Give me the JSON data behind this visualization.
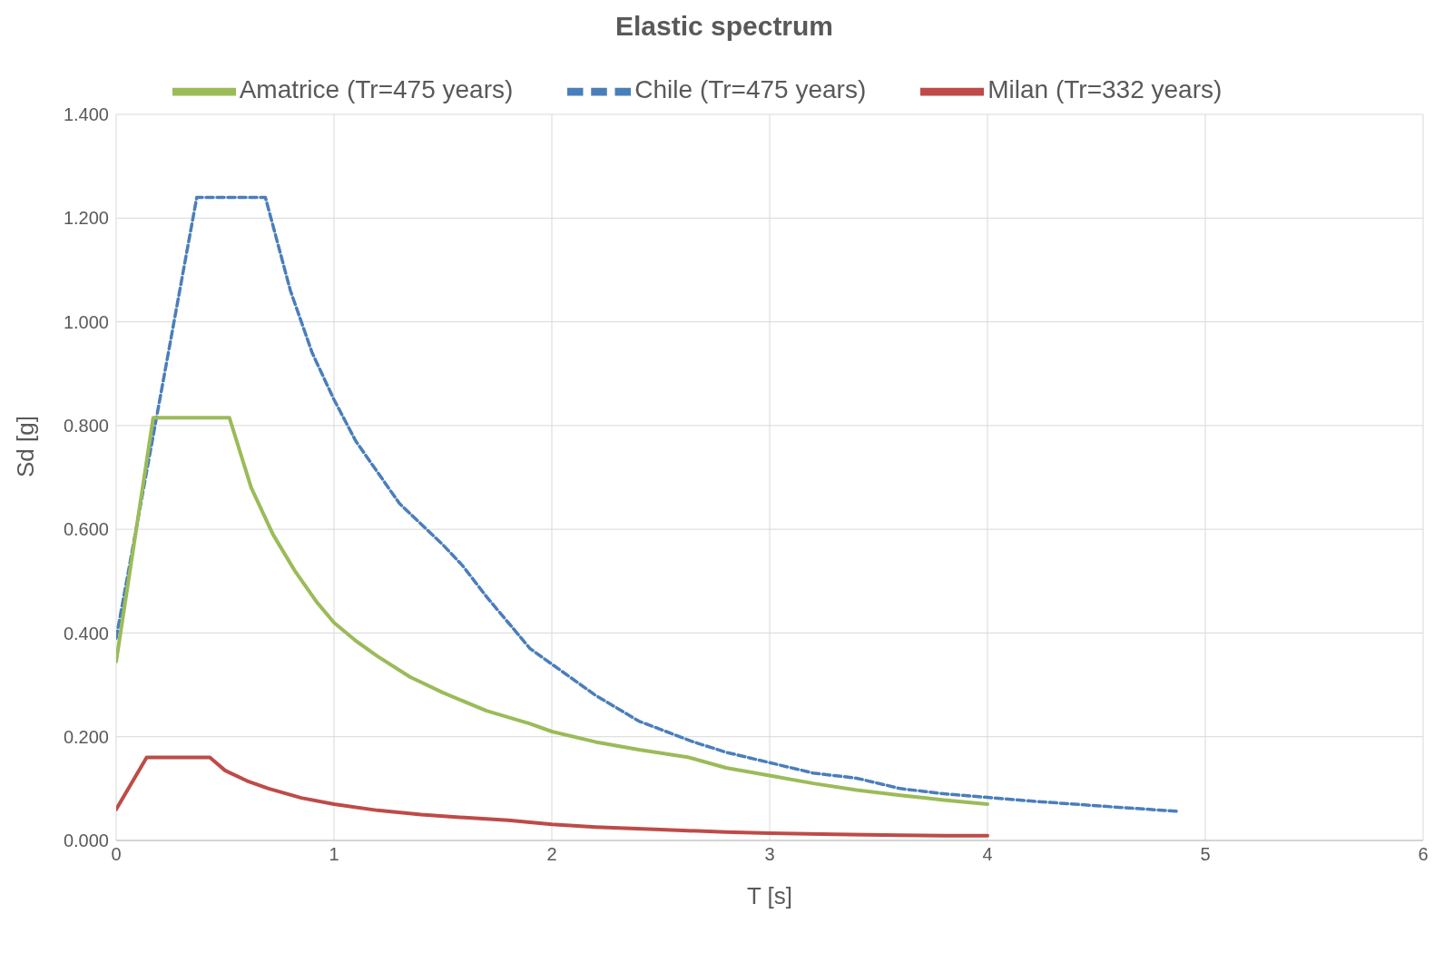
{
  "chart_data": {
    "type": "line",
    "title": "Elastic spectrum",
    "xlabel": "T [s]",
    "ylabel": "Sd [g]",
    "xlim": [
      0,
      6
    ],
    "xticks": [
      0,
      1,
      2,
      3,
      4,
      5,
      6
    ],
    "ylim": [
      0,
      1.4
    ],
    "yticks": [
      {
        "value": 0,
        "label": "0.000"
      },
      {
        "value": 0.2,
        "label": "0.200"
      },
      {
        "value": 0.4,
        "label": "0.400"
      },
      {
        "value": 0.6,
        "label": "0.600"
      },
      {
        "value": 0.8,
        "label": "0.800"
      },
      {
        "value": 1,
        "label": "1.000"
      },
      {
        "value": 1.2,
        "label": "1.200"
      },
      {
        "value": 1.4,
        "label": "1.400"
      }
    ],
    "grid": true,
    "legend": "top",
    "marker": "none",
    "series": [
      {
        "name": "Chile (Tr=475 years)",
        "color": "#4a7ebb",
        "line_style": "dashed",
        "x": [
          0,
          0.37,
          0.685,
          0.8,
          0.9,
          1,
          1.1,
          1.2,
          1.3,
          1.4,
          1.5,
          1.59,
          1.7,
          1.8,
          1.9,
          2,
          2.2,
          2.4,
          2.65,
          2.8,
          3,
          3.2,
          3.4,
          3.6,
          3.8,
          4,
          4.2,
          4.4,
          4.6,
          4.88
        ],
        "values": [
          0.39,
          1.24,
          1.24,
          1.06,
          0.94,
          0.85,
          0.77,
          0.71,
          0.65,
          0.61,
          0.57,
          0.53,
          0.47,
          0.42,
          0.37,
          0.34,
          0.28,
          0.23,
          0.19,
          0.17,
          0.15,
          0.13,
          0.12,
          0.1,
          0.09,
          0.083,
          0.076,
          0.07,
          0.064,
          0.056
        ]
      },
      {
        "name": "Milan (Tr=332 years)",
        "color": "#be4b48",
        "line_style": "solid",
        "x": [
          0,
          0.14,
          0.43,
          0.5,
          0.6,
          0.7,
          0.85,
          1,
          1.2,
          1.4,
          1.6,
          1.8,
          2,
          2.2,
          2.5,
          2.8,
          3,
          3.3,
          3.6,
          3.8,
          4
        ],
        "values": [
          0.06,
          0.16,
          0.16,
          0.135,
          0.115,
          0.1,
          0.082,
          0.07,
          0.058,
          0.05,
          0.044,
          0.039,
          0.031,
          0.026,
          0.021,
          0.016,
          0.014,
          0.012,
          0.01,
          0.009,
          0.009
        ]
      },
      {
        "name": "Amatrice (Tr=475 years)",
        "color": "#9bbb59",
        "line_style": "solid",
        "x": [
          0,
          0.17,
          0.52,
          0.62,
          0.72,
          0.82,
          0.92,
          1,
          1.1,
          1.2,
          1.35,
          1.5,
          1.7,
          1.9,
          2,
          2.2,
          2.4,
          2.63,
          2.8,
          3,
          3.2,
          3.4,
          3.6,
          3.8,
          4
        ],
        "values": [
          0.345,
          0.815,
          0.815,
          0.68,
          0.59,
          0.52,
          0.46,
          0.42,
          0.385,
          0.355,
          0.315,
          0.285,
          0.25,
          0.225,
          0.21,
          0.19,
          0.175,
          0.16,
          0.14,
          0.125,
          0.11,
          0.097,
          0.087,
          0.078,
          0.07
        ]
      }
    ]
  }
}
